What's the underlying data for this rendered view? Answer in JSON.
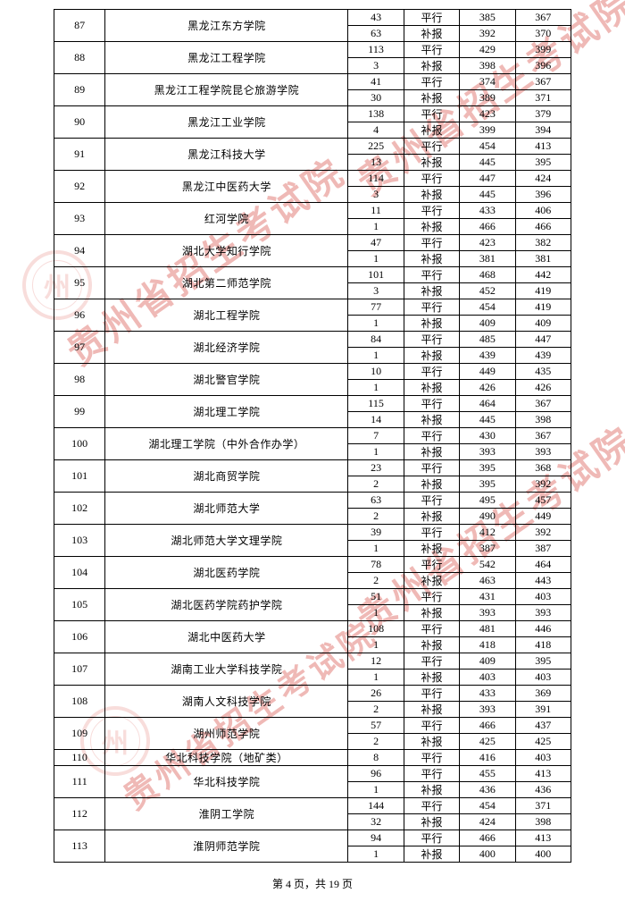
{
  "footer": {
    "text": "第 4 页，共 19 页"
  },
  "watermark_text": "贵州省招生考试院",
  "rows": [
    {
      "idx": "87",
      "name": "黑龙江东方学院",
      "sub": [
        {
          "a": "43",
          "b": "平行",
          "c": "385",
          "d": "367"
        },
        {
          "a": "63",
          "b": "补报",
          "c": "392",
          "d": "370"
        }
      ]
    },
    {
      "idx": "88",
      "name": "黑龙江工程学院",
      "sub": [
        {
          "a": "113",
          "b": "平行",
          "c": "429",
          "d": "399"
        },
        {
          "a": "3",
          "b": "补报",
          "c": "398",
          "d": "396"
        }
      ]
    },
    {
      "idx": "89",
      "name": "黑龙江工程学院昆仑旅游学院",
      "sub": [
        {
          "a": "41",
          "b": "平行",
          "c": "374",
          "d": "367"
        },
        {
          "a": "30",
          "b": "补报",
          "c": "389",
          "d": "371"
        }
      ]
    },
    {
      "idx": "90",
      "name": "黑龙江工业学院",
      "sub": [
        {
          "a": "138",
          "b": "平行",
          "c": "423",
          "d": "379"
        },
        {
          "a": "4",
          "b": "补报",
          "c": "399",
          "d": "394"
        }
      ]
    },
    {
      "idx": "91",
      "name": "黑龙江科技大学",
      "sub": [
        {
          "a": "225",
          "b": "平行",
          "c": "454",
          "d": "413"
        },
        {
          "a": "13",
          "b": "补报",
          "c": "445",
          "d": "395"
        }
      ]
    },
    {
      "idx": "92",
      "name": "黑龙江中医药大学",
      "sub": [
        {
          "a": "114",
          "b": "平行",
          "c": "447",
          "d": "424"
        },
        {
          "a": "3",
          "b": "补报",
          "c": "445",
          "d": "396"
        }
      ]
    },
    {
      "idx": "93",
      "name": "红河学院",
      "sub": [
        {
          "a": "11",
          "b": "平行",
          "c": "433",
          "d": "406"
        },
        {
          "a": "1",
          "b": "补报",
          "c": "466",
          "d": "466"
        }
      ]
    },
    {
      "idx": "94",
      "name": "湖北大学知行学院",
      "sub": [
        {
          "a": "47",
          "b": "平行",
          "c": "423",
          "d": "382"
        },
        {
          "a": "1",
          "b": "补报",
          "c": "381",
          "d": "381"
        }
      ]
    },
    {
      "idx": "95",
      "name": "湖北第二师范学院",
      "sub": [
        {
          "a": "101",
          "b": "平行",
          "c": "468",
          "d": "442"
        },
        {
          "a": "3",
          "b": "补报",
          "c": "452",
          "d": "419"
        }
      ]
    },
    {
      "idx": "96",
      "name": "湖北工程学院",
      "sub": [
        {
          "a": "77",
          "b": "平行",
          "c": "454",
          "d": "419"
        },
        {
          "a": "1",
          "b": "补报",
          "c": "409",
          "d": "409"
        }
      ]
    },
    {
      "idx": "97",
      "name": "湖北经济学院",
      "sub": [
        {
          "a": "84",
          "b": "平行",
          "c": "485",
          "d": "447"
        },
        {
          "a": "1",
          "b": "补报",
          "c": "439",
          "d": "439"
        }
      ]
    },
    {
      "idx": "98",
      "name": "湖北警官学院",
      "sub": [
        {
          "a": "10",
          "b": "平行",
          "c": "449",
          "d": "435"
        },
        {
          "a": "1",
          "b": "补报",
          "c": "426",
          "d": "426"
        }
      ]
    },
    {
      "idx": "99",
      "name": "湖北理工学院",
      "sub": [
        {
          "a": "115",
          "b": "平行",
          "c": "464",
          "d": "367"
        },
        {
          "a": "14",
          "b": "补报",
          "c": "445",
          "d": "398"
        }
      ]
    },
    {
      "idx": "100",
      "name": "湖北理工学院（中外合作办学）",
      "sub": [
        {
          "a": "7",
          "b": "平行",
          "c": "430",
          "d": "367"
        },
        {
          "a": "1",
          "b": "补报",
          "c": "393",
          "d": "393"
        }
      ]
    },
    {
      "idx": "101",
      "name": "湖北商贸学院",
      "sub": [
        {
          "a": "23",
          "b": "平行",
          "c": "395",
          "d": "368"
        },
        {
          "a": "2",
          "b": "补报",
          "c": "395",
          "d": "392"
        }
      ]
    },
    {
      "idx": "102",
      "name": "湖北师范大学",
      "sub": [
        {
          "a": "63",
          "b": "平行",
          "c": "495",
          "d": "457"
        },
        {
          "a": "2",
          "b": "补报",
          "c": "490",
          "d": "449"
        }
      ]
    },
    {
      "idx": "103",
      "name": "湖北师范大学文理学院",
      "sub": [
        {
          "a": "39",
          "b": "平行",
          "c": "412",
          "d": "392"
        },
        {
          "a": "1",
          "b": "补报",
          "c": "387",
          "d": "387"
        }
      ]
    },
    {
      "idx": "104",
      "name": "湖北医药学院",
      "sub": [
        {
          "a": "78",
          "b": "平行",
          "c": "542",
          "d": "464"
        },
        {
          "a": "2",
          "b": "补报",
          "c": "463",
          "d": "443"
        }
      ]
    },
    {
      "idx": "105",
      "name": "湖北医药学院药护学院",
      "sub": [
        {
          "a": "51",
          "b": "平行",
          "c": "431",
          "d": "403"
        },
        {
          "a": "1",
          "b": "补报",
          "c": "393",
          "d": "393"
        }
      ]
    },
    {
      "idx": "106",
      "name": "湖北中医药大学",
      "sub": [
        {
          "a": "108",
          "b": "平行",
          "c": "481",
          "d": "446"
        },
        {
          "a": "1",
          "b": "补报",
          "c": "418",
          "d": "418"
        }
      ]
    },
    {
      "idx": "107",
      "name": "湖南工业大学科技学院",
      "sub": [
        {
          "a": "12",
          "b": "平行",
          "c": "409",
          "d": "395"
        },
        {
          "a": "1",
          "b": "补报",
          "c": "403",
          "d": "403"
        }
      ]
    },
    {
      "idx": "108",
      "name": "湖南人文科技学院",
      "sub": [
        {
          "a": "26",
          "b": "平行",
          "c": "433",
          "d": "369"
        },
        {
          "a": "2",
          "b": "补报",
          "c": "393",
          "d": "391"
        }
      ]
    },
    {
      "idx": "109",
      "name": "湖州师范学院",
      "sub": [
        {
          "a": "57",
          "b": "平行",
          "c": "466",
          "d": "437"
        },
        {
          "a": "2",
          "b": "补报",
          "c": "425",
          "d": "425"
        }
      ]
    },
    {
      "idx": "110",
      "name": "华北科技学院（地矿类）",
      "sub": [
        {
          "a": "8",
          "b": "平行",
          "c": "416",
          "d": "403"
        }
      ]
    },
    {
      "idx": "111",
      "name": "华北科技学院",
      "sub": [
        {
          "a": "96",
          "b": "平行",
          "c": "455",
          "d": "413"
        },
        {
          "a": "1",
          "b": "补报",
          "c": "436",
          "d": "436"
        }
      ]
    },
    {
      "idx": "112",
      "name": "淮阴工学院",
      "sub": [
        {
          "a": "144",
          "b": "平行",
          "c": "454",
          "d": "371"
        },
        {
          "a": "32",
          "b": "补报",
          "c": "424",
          "d": "398"
        }
      ]
    },
    {
      "idx": "113",
      "name": "淮阴师范学院",
      "sub": [
        {
          "a": "94",
          "b": "平行",
          "c": "466",
          "d": "413"
        },
        {
          "a": "1",
          "b": "补报",
          "c": "400",
          "d": "400"
        }
      ]
    }
  ]
}
